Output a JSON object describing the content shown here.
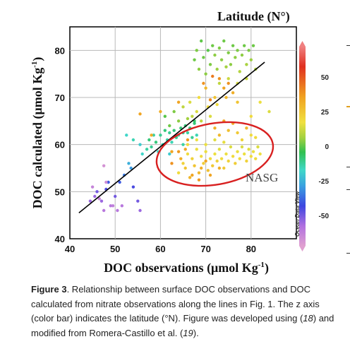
{
  "chart_data": {
    "type": "scatter",
    "title": "Latitude (N°)",
    "xlabel": "DOC observations (μmol Kg-1)",
    "ylabel": "DOC calculated (μmol Kg-1)",
    "xlim": [
      40,
      90
    ],
    "ylim": [
      40,
      85
    ],
    "x_ticks": [
      "40",
      "50",
      "60",
      "70",
      "80"
    ],
    "y_ticks": [
      "40",
      "50",
      "60",
      "70",
      "80"
    ],
    "grid": true,
    "colorbar": {
      "label": "Latitude (N°)",
      "range": [
        -72,
        72
      ],
      "ticks": [
        "50",
        "25",
        "0",
        "-25",
        "-50"
      ],
      "colors": [
        "#e0a0d0",
        "#b070e0",
        "#3c46e0",
        "#3aa0e0",
        "#40d8c8",
        "#30c050",
        "#a0d040",
        "#f0e040",
        "#f0a020",
        "#e03020",
        "#f08080"
      ]
    },
    "watermark": "Ocean Data View",
    "annotation": "NASG",
    "fit_line": {
      "x": [
        42,
        83
      ],
      "y": [
        45.5,
        77.5
      ]
    },
    "nasg_ellipse": {
      "center": [
        72,
        58
      ],
      "rx": 13,
      "ry": 6.5
    },
    "series": [
      {
        "marker_color": "mixed",
        "points": [
          [
            44.5,
            48,
            -55
          ],
          [
            45.5,
            49,
            -55
          ],
          [
            46,
            50,
            -50
          ],
          [
            47,
            48,
            -55
          ],
          [
            47.5,
            46,
            -60
          ],
          [
            48,
            50.5,
            -45
          ],
          [
            48.5,
            52,
            -40
          ],
          [
            49,
            47,
            -60
          ],
          [
            50,
            49,
            -50
          ],
          [
            50.5,
            46,
            -60
          ],
          [
            51,
            52,
            -40
          ],
          [
            51.5,
            47,
            -60
          ],
          [
            52,
            53.5,
            -35
          ],
          [
            53,
            56,
            -25
          ],
          [
            53.5,
            55,
            -30
          ],
          [
            54,
            51,
            -45
          ],
          [
            55,
            48,
            -50
          ],
          [
            55.5,
            46,
            -55
          ],
          [
            47.5,
            55.5,
            -68
          ],
          [
            48,
            52,
            -66
          ],
          [
            46.5,
            48.5,
            -64
          ],
          [
            49.5,
            47,
            -62
          ],
          [
            45,
            51,
            -64
          ],
          [
            56,
            58,
            -15
          ],
          [
            57,
            59,
            -10
          ],
          [
            57.5,
            61,
            -5
          ],
          [
            58,
            59.5,
            -8
          ],
          [
            58.5,
            62,
            -10
          ],
          [
            59,
            60.5,
            -5
          ],
          [
            60,
            62,
            -8
          ],
          [
            60.5,
            60,
            -12
          ],
          [
            61,
            63,
            -5
          ],
          [
            61.5,
            61,
            -10
          ],
          [
            62,
            62.5,
            -8
          ],
          [
            62.5,
            60.5,
            -12
          ],
          [
            63,
            63,
            -5
          ],
          [
            63.5,
            61.5,
            -8
          ],
          [
            64,
            62,
            -10
          ],
          [
            64.5,
            63.5,
            -5
          ],
          [
            65,
            62.5,
            -8
          ],
          [
            65.5,
            64,
            -5
          ],
          [
            66,
            62.5,
            -10
          ],
          [
            66.5,
            63.5,
            -6
          ],
          [
            67,
            61.5,
            -8
          ],
          [
            67.5,
            64.5,
            -5
          ],
          [
            68,
            62,
            -12
          ],
          [
            52.5,
            62,
            -15
          ],
          [
            54,
            61,
            -12
          ],
          [
            55.5,
            60,
            -18
          ],
          [
            59.5,
            58.5,
            -15
          ],
          [
            62,
            58,
            -18
          ],
          [
            65,
            60,
            -10
          ],
          [
            67.5,
            65,
            -3
          ],
          [
            61,
            66,
            5
          ],
          [
            62,
            64,
            8
          ],
          [
            63,
            67,
            10
          ],
          [
            64,
            65,
            12
          ],
          [
            65,
            68,
            20
          ],
          [
            66,
            65.5,
            15
          ],
          [
            66.5,
            69,
            25
          ],
          [
            67,
            66,
            20
          ],
          [
            68,
            67,
            25
          ],
          [
            68.5,
            70,
            30
          ],
          [
            69,
            65,
            20
          ],
          [
            70,
            72,
            38
          ],
          [
            70.5,
            68,
            30
          ],
          [
            71,
            66,
            25
          ],
          [
            72,
            70,
            35
          ],
          [
            72.5,
            68.5,
            30
          ],
          [
            73,
            74,
            45
          ],
          [
            74,
            72,
            42
          ],
          [
            74.5,
            70,
            38
          ],
          [
            75,
            73,
            45
          ],
          [
            76,
            71,
            40
          ],
          [
            77,
            69,
            35
          ],
          [
            69.5,
            73,
            45
          ],
          [
            71.5,
            74.5,
            48
          ],
          [
            60,
            67,
            40
          ],
          [
            64,
            69,
            42
          ],
          [
            66,
            61,
            44
          ],
          [
            62.5,
            58.5,
            42
          ],
          [
            58,
            62,
            40
          ],
          [
            55.5,
            66.5,
            42
          ],
          [
            71,
            69.5,
            46
          ],
          [
            67.5,
            78,
            8
          ],
          [
            68,
            80,
            10
          ],
          [
            68.5,
            76,
            12
          ],
          [
            69,
            82,
            6
          ],
          [
            69.5,
            78.5,
            8
          ],
          [
            70,
            75,
            12
          ],
          [
            70.5,
            80,
            5
          ],
          [
            71,
            77,
            10
          ],
          [
            71.5,
            81,
            8
          ],
          [
            72,
            79,
            12
          ],
          [
            72.5,
            76,
            14
          ],
          [
            73,
            80.5,
            10
          ],
          [
            73.5,
            78,
            12
          ],
          [
            74,
            82,
            8
          ],
          [
            74.5,
            76.5,
            15
          ],
          [
            75,
            79.5,
            10
          ],
          [
            75.5,
            77,
            12
          ],
          [
            76,
            81,
            8
          ],
          [
            76.5,
            78.5,
            12
          ],
          [
            77,
            80,
            10
          ],
          [
            77.5,
            75.5,
            18
          ],
          [
            78,
            79,
            12
          ],
          [
            78.5,
            81,
            8
          ],
          [
            79,
            77,
            16
          ],
          [
            79.5,
            80,
            10
          ],
          [
            80,
            78,
            14
          ],
          [
            80.5,
            81,
            8
          ],
          [
            81,
            76,
            18
          ],
          [
            73,
            73,
            20
          ],
          [
            75,
            74,
            22
          ],
          [
            77,
            73,
            24
          ],
          [
            79,
            74,
            22
          ],
          [
            64,
            54,
            30
          ],
          [
            65,
            56,
            32
          ],
          [
            65.5,
            55,
            35
          ],
          [
            66,
            58,
            30
          ],
          [
            66.5,
            53,
            38
          ],
          [
            67,
            57,
            32
          ],
          [
            67.5,
            55.5,
            35
          ],
          [
            68,
            59,
            28
          ],
          [
            68.5,
            54,
            38
          ],
          [
            69,
            57.5,
            30
          ],
          [
            69.5,
            56,
            33
          ],
          [
            70,
            58.5,
            28
          ],
          [
            70.5,
            54.5,
            36
          ],
          [
            71,
            57,
            30
          ],
          [
            71.5,
            55.5,
            34
          ],
          [
            72,
            58,
            28
          ],
          [
            72.5,
            56.5,
            32
          ],
          [
            73,
            59,
            26
          ],
          [
            73.5,
            57,
            30
          ],
          [
            74,
            55,
            34
          ],
          [
            74.5,
            58,
            28
          ],
          [
            75,
            56.5,
            32
          ],
          [
            75.5,
            59.5,
            25
          ],
          [
            76,
            57.5,
            30
          ],
          [
            76.5,
            56,
            33
          ],
          [
            77,
            58.5,
            28
          ],
          [
            77.5,
            57,
            30
          ],
          [
            78,
            59.5,
            25
          ],
          [
            78.5,
            58,
            28
          ],
          [
            79,
            56.5,
            32
          ],
          [
            79.5,
            59,
            26
          ],
          [
            80,
            57.5,
            30
          ],
          [
            80.5,
            58.5,
            28
          ],
          [
            81,
            57,
            30
          ],
          [
            81.5,
            59.5,
            25
          ],
          [
            82,
            58,
            28
          ],
          [
            66,
            60,
            30
          ],
          [
            68,
            61,
            28
          ],
          [
            70,
            60,
            28
          ],
          [
            72,
            61,
            26
          ],
          [
            74,
            60.5,
            27
          ],
          [
            64.5,
            57,
            40
          ],
          [
            67,
            53.5,
            42
          ],
          [
            69,
            55,
            40
          ],
          [
            71,
            53.5,
            42
          ],
          [
            73,
            55,
            40
          ],
          [
            65.5,
            59,
            42
          ],
          [
            68.5,
            52.5,
            44
          ],
          [
            70,
            56.5,
            42
          ],
          [
            62.5,
            56,
            45
          ],
          [
            64,
            58.5,
            44
          ],
          [
            73,
            62,
            38
          ],
          [
            75,
            63,
            36
          ],
          [
            77,
            62.5,
            34
          ],
          [
            78,
            61,
            32
          ],
          [
            80,
            62,
            30
          ],
          [
            76,
            64.5,
            40
          ],
          [
            79,
            63.5,
            38
          ],
          [
            81,
            61.5,
            30
          ],
          [
            74,
            65,
            42
          ],
          [
            72,
            63.5,
            40
          ],
          [
            84,
            67,
            25
          ],
          [
            82,
            69,
            28
          ],
          [
            80,
            66,
            30
          ]
        ]
      }
    ]
  },
  "caption": {
    "figure_label": "Figure 3",
    "text_1": ". Relationship between surface DOC observations and DOC calculated from nitrate observations along the lines in Fig. 1. The z axis (color bar) indicates the latitude (°N). Figure was developed using (",
    "ref_1": "18",
    "text_2": ") and modified from Romera-Castillo et al. (",
    "ref_2": "19",
    "text_3": ")."
  }
}
